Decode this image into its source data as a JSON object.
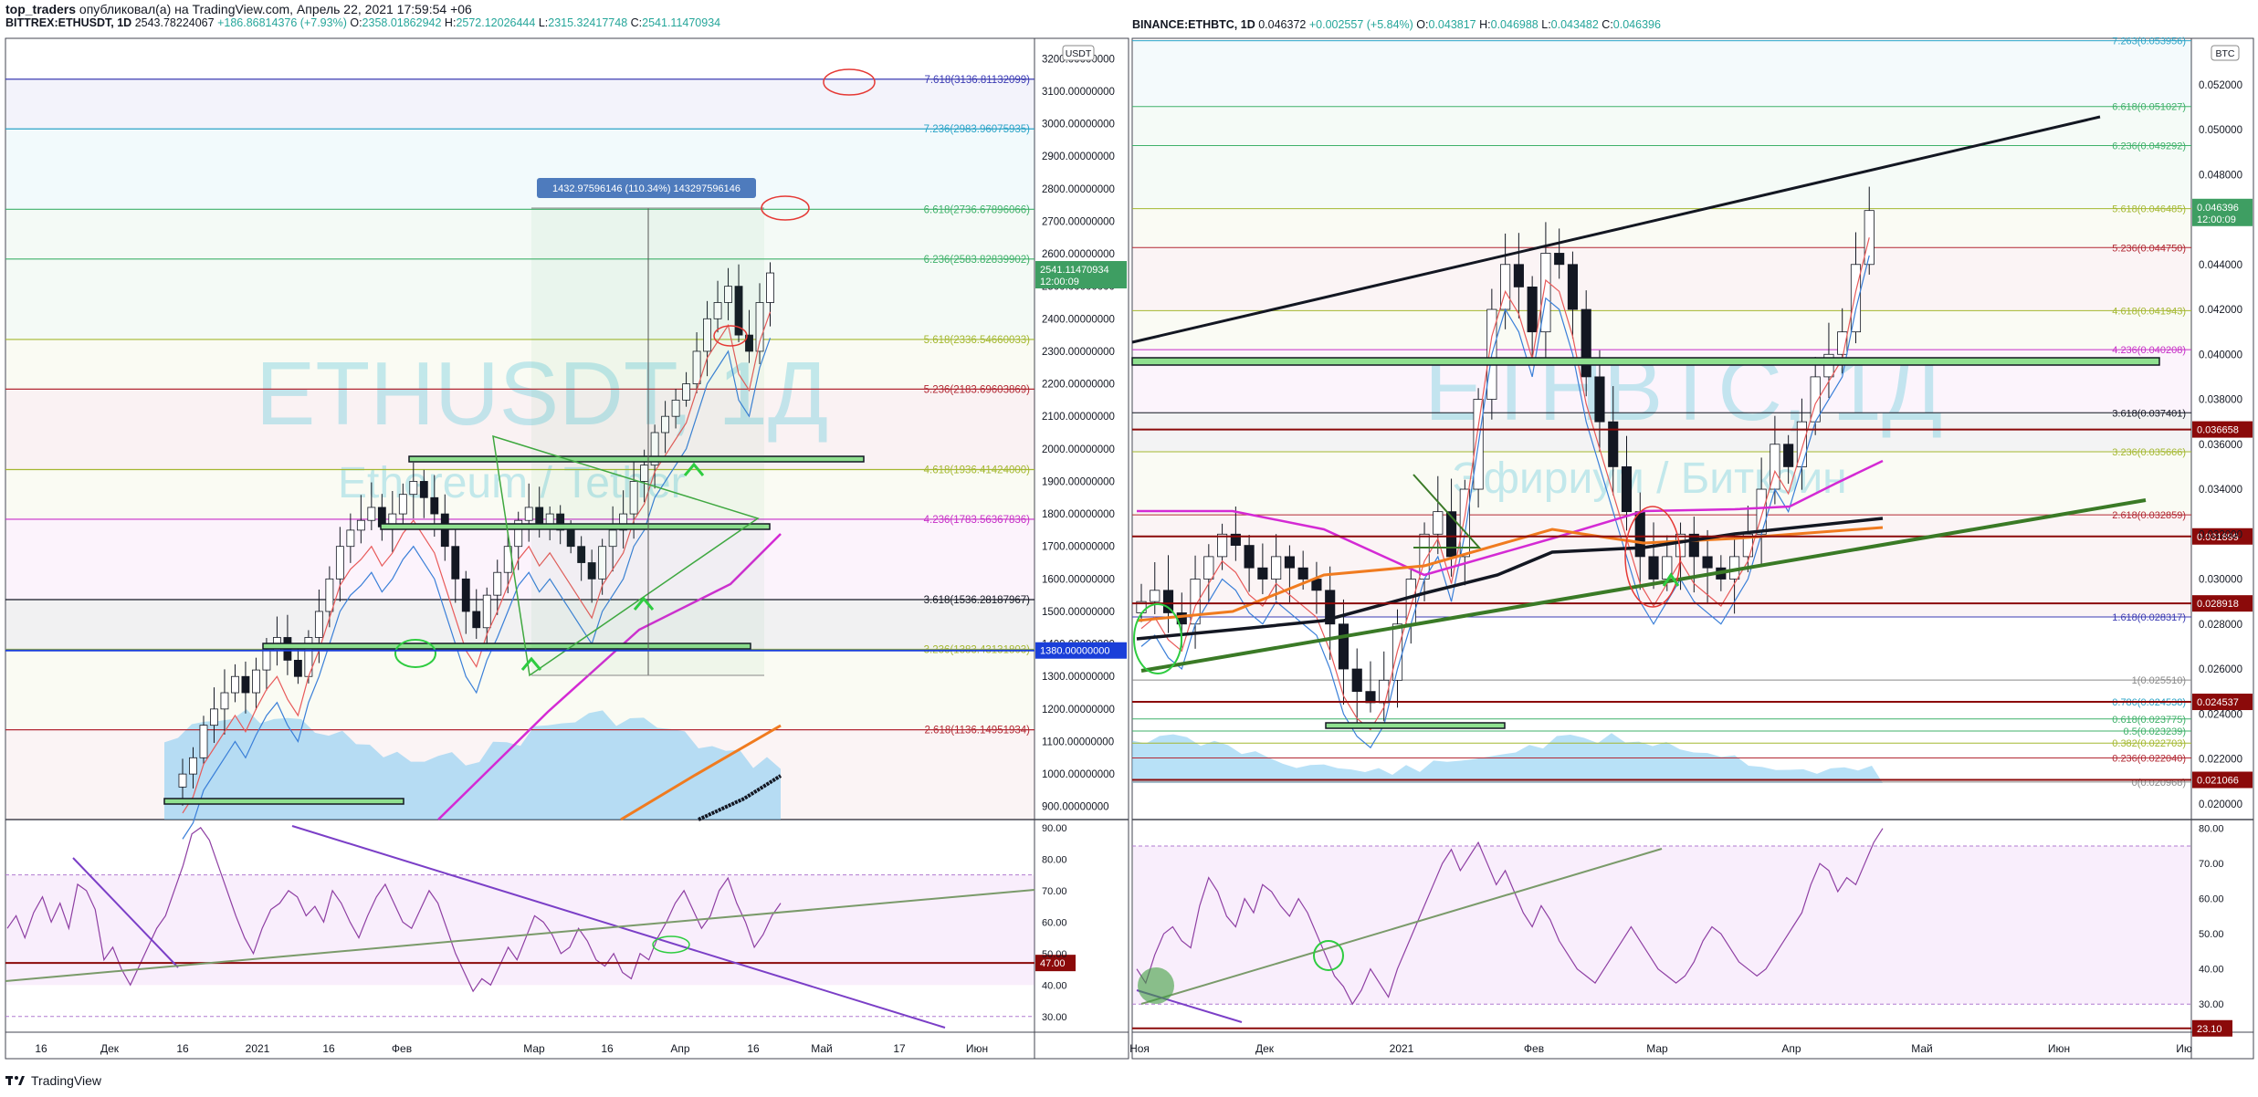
{
  "header": {
    "author": "top_traders",
    "published_text": "опубликовал(а) на TradingView.com, Апрель 22, 2021 17:59:54 +06"
  },
  "footer": {
    "brand": "TradingView"
  },
  "chart_data": [
    {
      "type": "candlestick",
      "symbol": "BITTREX:ETHUSDT, 1D",
      "ohlc_change": "2543.78224067",
      "change": "+186.86814376 (+7.93%)",
      "open": "2358.01862942",
      "high": "2572.12026444",
      "low": "2315.32417748",
      "close": "2541.11470934",
      "watermark_symbol": "ETHUSDT, 1Д",
      "watermark_name": "Ethereum / Tether",
      "currency": "USDT",
      "last_price_label": "2541.11470934",
      "last_price_timer": "12:00:09",
      "price_marker": "1380.00000000",
      "ylim": [
        860,
        3240
      ],
      "y_ticks": [
        "3200.00000000",
        "3100.00000000",
        "3000.00000000",
        "2900.00000000",
        "2800.00000000",
        "2700.00000000",
        "2600.00000000",
        "2500.00000000",
        "2400.00000000",
        "2300.00000000",
        "2200.00000000",
        "2100.00000000",
        "2000.00000000",
        "1900.00000000",
        "1800.00000000",
        "1700.00000000",
        "1600.00000000",
        "1500.00000000",
        "1400.00000000",
        "1300.00000000",
        "1200.00000000",
        "1100.00000000",
        "1000.00000000",
        "900.00000000"
      ],
      "y_tick_values": [
        3200,
        3100,
        3000,
        2900,
        2800,
        2700,
        2600,
        2500,
        2400,
        2300,
        2200,
        2100,
        2000,
        1900,
        1800,
        1700,
        1600,
        1500,
        1400,
        1300,
        1200,
        1100,
        1000,
        900
      ],
      "x_ticks": [
        "16",
        "Дек",
        "16",
        "2021",
        "16",
        "Фев",
        "Мар",
        "16",
        "Апр",
        "16",
        "Май",
        "17",
        "Июн"
      ],
      "fib_levels": [
        {
          "label": "7.618(3136.81132099)",
          "value": 3136.8,
          "color": "#3b3bb3"
        },
        {
          "label": "7.236(2983.96075935)",
          "value": 2984.0,
          "color": "#2aa3c7"
        },
        {
          "label": "6.618(2736.67896066)",
          "value": 2736.7,
          "color": "#3fb16a"
        },
        {
          "label": "6.236(2583.82839902)",
          "value": 2583.8,
          "color": "#3fb16a"
        },
        {
          "label": "5.618(2336.54660033)",
          "value": 2336.5,
          "color": "#a4b830"
        },
        {
          "label": "5.236(2183.69603869)",
          "value": 2183.7,
          "color": "#b22833"
        },
        {
          "label": "4.618(1936.41424000)",
          "value": 1936.4,
          "color": "#a4b830"
        },
        {
          "label": "4.236(1783.56367836)",
          "value": 1783.6,
          "color": "#c72fc7"
        },
        {
          "label": "3.618(1536.28187967)",
          "value": 1536.3,
          "color": "#131722"
        },
        {
          "label": "3.236(1383.43131803)",
          "value": 1383.4,
          "color": "#a4b830"
        },
        {
          "label": "2.618(1136.14951934)",
          "value": 1136.1,
          "color": "#b22833"
        }
      ],
      "measure_label": "1432.97596146 (110.34%) 143297596146",
      "rsi": {
        "ylim": [
          25,
          92
        ],
        "y_ticks": [
          "90.00",
          "80.00",
          "70.00",
          "60.00",
          "50.00",
          "40.00",
          "30.00"
        ],
        "y_tick_values": [
          90,
          80,
          70,
          60,
          50,
          40,
          30
        ],
        "level_marker": "47.00",
        "values": [
          58,
          62,
          55,
          63,
          68,
          60,
          66,
          58,
          72,
          70,
          64,
          48,
          52,
          45,
          40,
          46,
          52,
          58,
          62,
          70,
          78,
          88,
          90,
          86,
          78,
          70,
          62,
          55,
          50,
          58,
          64,
          66,
          70,
          68,
          62,
          65,
          60,
          70,
          66,
          60,
          55,
          62,
          68,
          72,
          66,
          60,
          58,
          64,
          70,
          66,
          58,
          50,
          44,
          38,
          42,
          40,
          46,
          52,
          48,
          55,
          62,
          60,
          56,
          50,
          52,
          58,
          54,
          48,
          46,
          50,
          44,
          42,
          50,
          48,
          55,
          60,
          66,
          70,
          64,
          58,
          62,
          70,
          74,
          66,
          60,
          52,
          56,
          62,
          66
        ]
      }
    },
    {
      "type": "candlestick",
      "symbol": "BINANCE:ETHBTC, 1D",
      "ohlc_change": "0.046372",
      "change": "+0.002557 (+5.84%)",
      "open": "0.043817",
      "high": "0.046988",
      "low": "0.043482",
      "close": "0.046396",
      "watermark_symbol": "ETHBTC, 1Д",
      "watermark_name": "Эфириум / Биткоин",
      "currency": "BTC",
      "last_price_label": "0.046396",
      "last_price_timer": "12:00:09",
      "ylim": [
        0.0193,
        0.0539
      ],
      "y_ticks": [
        "0.052000",
        "0.050000",
        "0.048000",
        "0.046000",
        "0.044000",
        "0.042000",
        "0.040000",
        "0.038000",
        "0.036000",
        "0.034000",
        "0.032000",
        "0.030000",
        "0.028000",
        "0.026000",
        "0.024000",
        "0.022000",
        "0.020000"
      ],
      "y_tick_values": [
        0.052,
        0.05,
        0.048,
        0.046,
        0.044,
        0.042,
        0.04,
        0.038,
        0.036,
        0.034,
        0.032,
        0.03,
        0.028,
        0.026,
        0.024,
        0.022,
        0.02
      ],
      "x_ticks": [
        "Ноя",
        "Дек",
        "2021",
        "Фев",
        "Мар",
        "Апр",
        "Май",
        "Июн",
        "Ию"
      ],
      "price_markers": [
        {
          "label": "0.036658",
          "value": 0.036658
        },
        {
          "label": "0.031899",
          "value": 0.031899
        },
        {
          "label": "0.028918",
          "value": 0.028918
        },
        {
          "label": "0.024537",
          "value": 0.024537
        },
        {
          "label": "0.021066",
          "value": 0.021066
        }
      ],
      "fib_levels": [
        {
          "label": "7.263(0.053956)",
          "value": 0.053956,
          "color": "#2aa3c7"
        },
        {
          "label": "6.618(0.051027)",
          "value": 0.051027,
          "color": "#3fb16a"
        },
        {
          "label": "6.236(0.049292)",
          "value": 0.049292,
          "color": "#3fb16a"
        },
        {
          "label": "5.618(0.046485)",
          "value": 0.046485,
          "color": "#a4b830"
        },
        {
          "label": "5.236(0.044750)",
          "value": 0.04475,
          "color": "#b22833"
        },
        {
          "label": "4.618(0.041943)",
          "value": 0.041943,
          "color": "#a4b830"
        },
        {
          "label": "4.236(0.040208)",
          "value": 0.040208,
          "color": "#c72fc7"
        },
        {
          "label": "3.618(0.037401)",
          "value": 0.037401,
          "color": "#131722"
        },
        {
          "label": "3.236(0.035666)",
          "value": 0.035666,
          "color": "#a4b830"
        },
        {
          "label": "2.618(0.032859)",
          "value": 0.032859,
          "color": "#b22833"
        },
        {
          "label": "1.618(0.028317)",
          "value": 0.028317,
          "color": "#3b3bb3"
        },
        {
          "label": "1(0.025510)",
          "value": 0.02551,
          "color": "#888888"
        },
        {
          "label": "0.786(0.024538)",
          "value": 0.024538,
          "color": "#2aa3c7"
        },
        {
          "label": "0.618(0.023775)",
          "value": 0.023775,
          "color": "#3fb16a"
        },
        {
          "label": "0.5(0.023239)",
          "value": 0.023239,
          "color": "#3fb16a"
        },
        {
          "label": "0.382(0.022703)",
          "value": 0.022703,
          "color": "#a4b830"
        },
        {
          "label": "0.236(0.022040)",
          "value": 0.02204,
          "color": "#b22833"
        },
        {
          "label": "0(0.020968)",
          "value": 0.020968,
          "color": "#888888"
        }
      ],
      "rsi": {
        "ylim": [
          22,
          82
        ],
        "y_ticks": [
          "80.00",
          "70.00",
          "60.00",
          "50.00",
          "40.00",
          "30.00"
        ],
        "y_tick_values": [
          80,
          70,
          60,
          50,
          40,
          30
        ],
        "level_marker": "23.10",
        "values": [
          40,
          36,
          44,
          50,
          52,
          48,
          46,
          58,
          66,
          62,
          55,
          52,
          60,
          56,
          64,
          62,
          58,
          55,
          60,
          56,
          50,
          44,
          38,
          35,
          30,
          34,
          40,
          36,
          32,
          40,
          46,
          52,
          58,
          64,
          70,
          74,
          68,
          72,
          76,
          70,
          64,
          68,
          62,
          56,
          52,
          58,
          54,
          48,
          44,
          40,
          38,
          36,
          40,
          44,
          48,
          52,
          48,
          44,
          40,
          38,
          36,
          38,
          42,
          48,
          52,
          50,
          46,
          42,
          40,
          38,
          40,
          44,
          48,
          52,
          56,
          64,
          70,
          68,
          62,
          66,
          64,
          70,
          76,
          80
        ]
      }
    }
  ]
}
